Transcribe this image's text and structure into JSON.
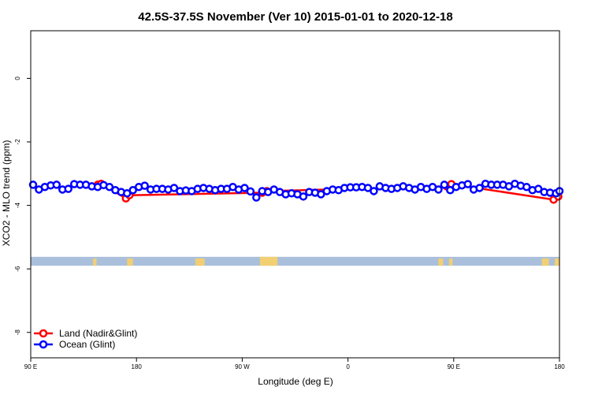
{
  "chart_data": {
    "type": "scatter",
    "title": "42.5S-37.5S November (Ver 10)   2015-01-01 to 2020-12-18",
    "xlabel": "Longitude (deg E)",
    "ylabel": "XCO2 - MLO trend (ppm)",
    "x_tick_positions": [
      90,
      180,
      270,
      360,
      450,
      540
    ],
    "x_tick_labels": [
      "90 E",
      "180",
      "90 W",
      "0",
      "90 E",
      "180"
    ],
    "y_ticks": [
      0,
      -2,
      -4,
      -6,
      -8
    ],
    "xlim": [
      90,
      540
    ],
    "ylim": [
      -8.8,
      1.5
    ],
    "grid": false,
    "legend": "bottom-left",
    "legend_items": [
      {
        "name": "Land (Nadir&Glint)",
        "color": "#ff0000"
      },
      {
        "name": "Ocean (Glint)",
        "color": "#0000ff"
      }
    ],
    "surface_band": {
      "y_top": -5.62,
      "y_bottom": -5.9,
      "ocean_color": "#a9bfdc",
      "land_color": "#f2cf72"
    },
    "land_spans": [
      [
        143,
        146
      ],
      [
        172,
        177
      ],
      [
        285,
        300
      ],
      [
        232,
        234
      ],
      [
        231,
        232
      ],
      [
        230,
        231
      ],
      [
        233,
        238
      ],
      [
        234,
        236
      ],
      [
        437,
        441
      ],
      [
        446,
        449
      ],
      [
        525,
        531
      ],
      [
        536,
        540
      ]
    ],
    "land_spans_note": "",
    "series": [
      {
        "name": "Land (Nadir&Glint)",
        "color": "#ff0000",
        "x": [
          147,
          150,
          171,
          174,
          287,
          291,
          444,
          448,
          535,
          539
        ],
        "y": [
          -3.35,
          -3.32,
          -3.78,
          -3.68,
          -3.6,
          -3.55,
          -3.4,
          -3.33,
          -3.82,
          -3.72
        ]
      },
      {
        "name": "Ocean (Glint)",
        "color": "#0000ff",
        "x": [
          92,
          97,
          102,
          107,
          112,
          117,
          122,
          127,
          132,
          137,
          142,
          147,
          152,
          157,
          162,
          167,
          172,
          177,
          182,
          187,
          192,
          197,
          202,
          207,
          212,
          217,
          222,
          227,
          232,
          237,
          242,
          247,
          252,
          257,
          262,
          267,
          272,
          277,
          282,
          287,
          292,
          297,
          302,
          307,
          312,
          317,
          322,
          327,
          332,
          337,
          342,
          347,
          352,
          357,
          362,
          367,
          372,
          377,
          382,
          387,
          392,
          397,
          402,
          407,
          412,
          417,
          422,
          427,
          432,
          437,
          442,
          447,
          452,
          457,
          462,
          467,
          472,
          477,
          482,
          487,
          492,
          497,
          502,
          507,
          512,
          517,
          522,
          527,
          532,
          537,
          540
        ],
        "y": [
          -3.35,
          -3.5,
          -3.42,
          -3.37,
          -3.35,
          -3.5,
          -3.48,
          -3.33,
          -3.35,
          -3.35,
          -3.4,
          -3.42,
          -3.36,
          -3.42,
          -3.52,
          -3.58,
          -3.62,
          -3.52,
          -3.42,
          -3.38,
          -3.5,
          -3.48,
          -3.48,
          -3.5,
          -3.45,
          -3.55,
          -3.53,
          -3.55,
          -3.48,
          -3.45,
          -3.48,
          -3.52,
          -3.48,
          -3.48,
          -3.42,
          -3.5,
          -3.45,
          -3.56,
          -3.75,
          -3.55,
          -3.58,
          -3.5,
          -3.58,
          -3.65,
          -3.62,
          -3.65,
          -3.72,
          -3.58,
          -3.6,
          -3.65,
          -3.55,
          -3.5,
          -3.52,
          -3.45,
          -3.43,
          -3.43,
          -3.42,
          -3.45,
          -3.55,
          -3.4,
          -3.45,
          -3.48,
          -3.45,
          -3.4,
          -3.45,
          -3.5,
          -3.42,
          -3.48,
          -3.42,
          -3.5,
          -3.35,
          -3.52,
          -3.42,
          -3.37,
          -3.33,
          -3.5,
          -3.45,
          -3.32,
          -3.35,
          -3.35,
          -3.35,
          -3.4,
          -3.32,
          -3.38,
          -3.42,
          -3.52,
          -3.48,
          -3.58,
          -3.6,
          -3.62,
          -3.55
        ]
      }
    ]
  }
}
